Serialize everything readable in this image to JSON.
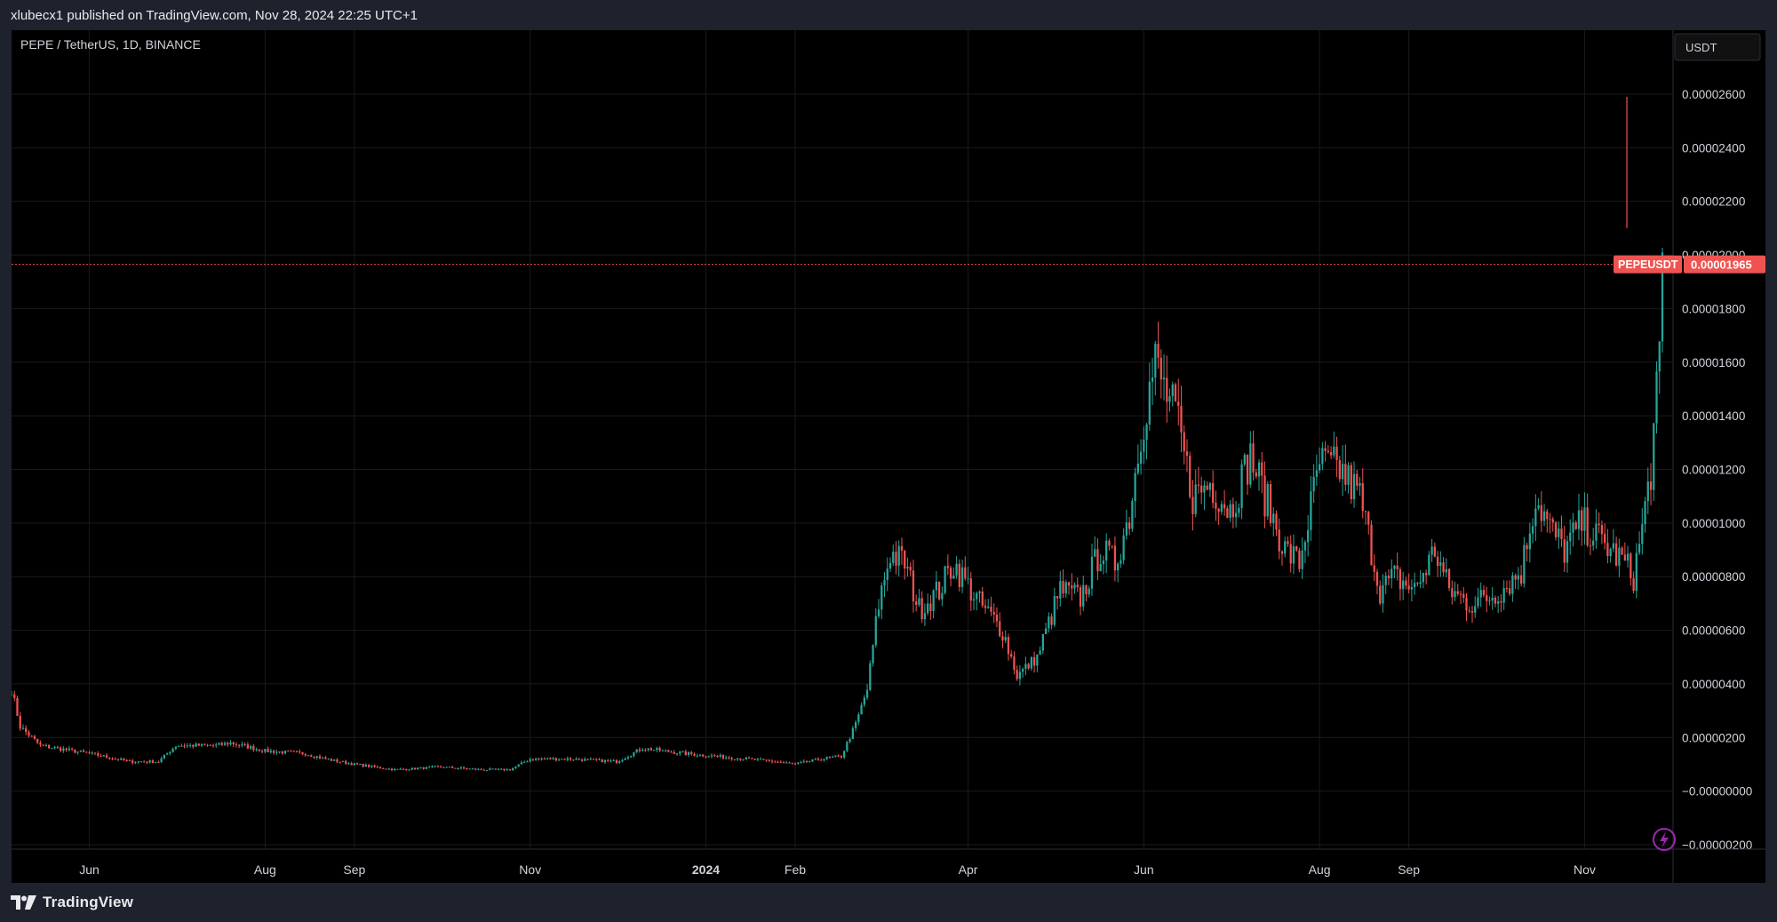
{
  "header": {
    "published_text": "xlubecx1 published on TradingView.com, Nov 28, 2024 22:25 UTC+1"
  },
  "footer": {
    "brand": "TradingView"
  },
  "colors": {
    "up": "#26a69a",
    "down": "#ef5350",
    "grid": "#1a1a1a",
    "axis_text": "#d1d4dc"
  },
  "chart_data": {
    "type": "candlestick",
    "title": "PEPE / TetherUS, 1D, BINANCE",
    "currency": "USDT",
    "symbol_label": "PEPEUSDT",
    "last_price": 1.965e-05,
    "last_price_label": "0.00001965",
    "ylim": [
      -2e-07,
      2.6e-06
    ],
    "ytick_values": [
      2.6e-05,
      2.4e-05,
      2.2e-05,
      2e-05,
      1.8e-05,
      1.6e-05,
      1.4e-05,
      1.2e-05,
      1e-05,
      8e-06,
      6e-06,
      4e-06,
      2e-06,
      0,
      -2e-06
    ],
    "ytick_labels": [
      "0.00002600",
      "0.00002400",
      "0.00002200",
      "0.00002000",
      "0.00001800",
      "0.00001600",
      "0.00001400",
      "0.00001200",
      "0.00001000",
      "0.00000800",
      "0.00000600",
      "0.00000400",
      "0.00000200",
      "−0.00000000",
      "−0.00000200"
    ],
    "x_start": "2023-05-05",
    "x_end": "2024-11-28",
    "xticks": [
      {
        "label": "Jun",
        "date": "2023-06-01",
        "bold": false
      },
      {
        "label": "Aug",
        "date": "2023-08-01",
        "bold": false
      },
      {
        "label": "Sep",
        "date": "2023-09-01",
        "bold": false
      },
      {
        "label": "Nov",
        "date": "2023-11-01",
        "bold": false
      },
      {
        "label": "2024",
        "date": "2024-01-01",
        "bold": true
      },
      {
        "label": "Feb",
        "date": "2024-02-01",
        "bold": false
      },
      {
        "label": "Apr",
        "date": "2024-04-01",
        "bold": false
      },
      {
        "label": "Jun",
        "date": "2024-06-01",
        "bold": false
      },
      {
        "label": "Aug",
        "date": "2024-08-01",
        "bold": false
      },
      {
        "label": "Sep",
        "date": "2024-09-01",
        "bold": false
      },
      {
        "label": "Nov",
        "date": "2024-11-01",
        "bold": false
      }
    ],
    "close_path": [
      [
        "2023-05-05",
        3.8e-06
      ],
      [
        "2023-05-08",
        2.4e-06
      ],
      [
        "2023-05-15",
        1.7e-06
      ],
      [
        "2023-06-01",
        1.4e-06
      ],
      [
        "2023-06-15",
        1.1e-06
      ],
      [
        "2023-06-25",
        1.1e-06
      ],
      [
        "2023-07-01",
        1.7e-06
      ],
      [
        "2023-07-15",
        1.7e-06
      ],
      [
        "2023-07-20",
        1.8e-06
      ],
      [
        "2023-08-01",
        1.5e-06
      ],
      [
        "2023-08-15",
        1.4e-06
      ],
      [
        "2023-08-22",
        1.2e-06
      ],
      [
        "2023-09-01",
        1e-06
      ],
      [
        "2023-09-15",
        8e-07
      ],
      [
        "2023-10-01",
        9e-07
      ],
      [
        "2023-10-15",
        8e-07
      ],
      [
        "2023-10-25",
        8e-07
      ],
      [
        "2023-11-01",
        1.2e-06
      ],
      [
        "2023-11-15",
        1.2e-06
      ],
      [
        "2023-12-01",
        1.1e-06
      ],
      [
        "2023-12-10",
        1.6e-06
      ],
      [
        "2023-12-25",
        1.4e-06
      ],
      [
        "2024-01-15",
        1.2e-06
      ],
      [
        "2024-01-25",
        1.1e-06
      ],
      [
        "2024-02-01",
        1e-06
      ],
      [
        "2024-02-10",
        1.2e-06
      ],
      [
        "2024-02-17",
        1.3e-06
      ],
      [
        "2024-02-22",
        2.5e-06
      ],
      [
        "2024-02-26",
        3.8e-06
      ],
      [
        "2024-03-01",
        7e-06
      ],
      [
        "2024-03-05",
        8.9e-06
      ],
      [
        "2024-03-10",
        8.5e-06
      ],
      [
        "2024-03-15",
        6.8e-06
      ],
      [
        "2024-03-22",
        7.5e-06
      ],
      [
        "2024-03-27",
        8.5e-06
      ],
      [
        "2024-04-05",
        7e-06
      ],
      [
        "2024-04-13",
        6e-06
      ],
      [
        "2024-04-18",
        4.3e-06
      ],
      [
        "2024-04-25",
        5e-06
      ],
      [
        "2024-05-03",
        7.5e-06
      ],
      [
        "2024-05-10",
        7.2e-06
      ],
      [
        "2024-05-17",
        9e-06
      ],
      [
        "2024-05-22",
        8.5e-06
      ],
      [
        "2024-05-27",
        1.03e-05
      ],
      [
        "2024-05-31",
        1.35e-05
      ],
      [
        "2024-06-05",
        1.6e-05
      ],
      [
        "2024-06-08",
        1.5e-05
      ],
      [
        "2024-06-12",
        1.4e-05
      ],
      [
        "2024-06-18",
        1.1e-05
      ],
      [
        "2024-06-24",
        1.15e-05
      ],
      [
        "2024-07-01",
        1.05e-05
      ],
      [
        "2024-07-08",
        1.25e-05
      ],
      [
        "2024-07-13",
        1.1e-05
      ],
      [
        "2024-07-20",
        9e-06
      ],
      [
        "2024-07-25",
        8.5e-06
      ],
      [
        "2024-08-01",
        1.22e-05
      ],
      [
        "2024-08-08",
        1.2e-05
      ],
      [
        "2024-08-15",
        1.1e-05
      ],
      [
        "2024-08-22",
        7.5e-06
      ],
      [
        "2024-08-27",
        8e-06
      ],
      [
        "2024-09-03",
        7.5e-06
      ],
      [
        "2024-09-10",
        9e-06
      ],
      [
        "2024-09-15",
        7.5e-06
      ],
      [
        "2024-09-22",
        7e-06
      ],
      [
        "2024-09-28",
        7.2e-06
      ],
      [
        "2024-10-03",
        7.5e-06
      ],
      [
        "2024-10-10",
        8.2e-06
      ],
      [
        "2024-10-15",
        1.1e-05
      ],
      [
        "2024-10-20",
        9.8e-06
      ],
      [
        "2024-10-25",
        9e-06
      ],
      [
        "2024-10-31",
        1e-05
      ],
      [
        "2024-11-05",
        9.5e-06
      ],
      [
        "2024-11-10",
        9e-06
      ],
      [
        "2024-11-15",
        8.5e-06
      ],
      [
        "2024-11-18",
        8e-06
      ],
      [
        "2024-11-21",
        9.8e-06
      ],
      [
        "2024-11-24",
        1.2e-05
      ],
      [
        "2024-11-27",
        1.6e-05
      ],
      [
        "2024-11-28",
        1.96e-05
      ]
    ],
    "extra_peaks": [
      {
        "date": "2024-11-28",
        "high": 2.59e-05
      }
    ]
  }
}
